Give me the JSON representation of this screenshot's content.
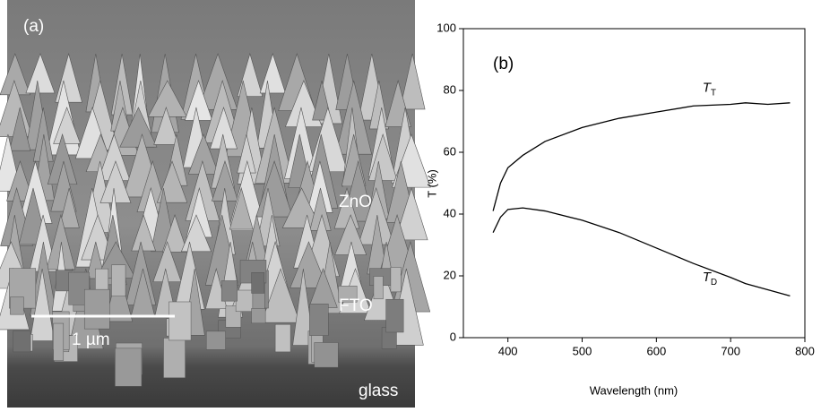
{
  "image": {
    "panel_label": "(a)",
    "labels": [
      "ZnO",
      "FTO",
      "glass"
    ],
    "scale_bar": "1 µm"
  },
  "chart_data": {
    "type": "line",
    "title": "(b)",
    "x_label": "Wavelength (nm)",
    "y_label": "T (%)",
    "x": [
      380,
      390,
      400,
      420,
      450,
      500,
      550,
      600,
      650,
      700,
      720,
      750,
      780
    ],
    "series": [
      {
        "name": "T",
        "name_sub": "T",
        "color": "#000000",
        "values": [
          41,
          50,
          55,
          59,
          63.5,
          68,
          71,
          73,
          75,
          75.5,
          76,
          75.5,
          76
        ]
      },
      {
        "name": "T",
        "name_sub": "D",
        "color": "#000000",
        "values": [
          34,
          39,
          41.5,
          42,
          41,
          38,
          34,
          29,
          24,
          19.5,
          17.5,
          15.5,
          13.5
        ]
      }
    ],
    "xlim": [
      340,
      800
    ],
    "xticks": [
      400,
      500,
      600,
      700,
      800
    ],
    "ylim": [
      0,
      100
    ],
    "yticks": [
      0,
      20,
      40,
      60,
      80,
      100
    ]
  }
}
